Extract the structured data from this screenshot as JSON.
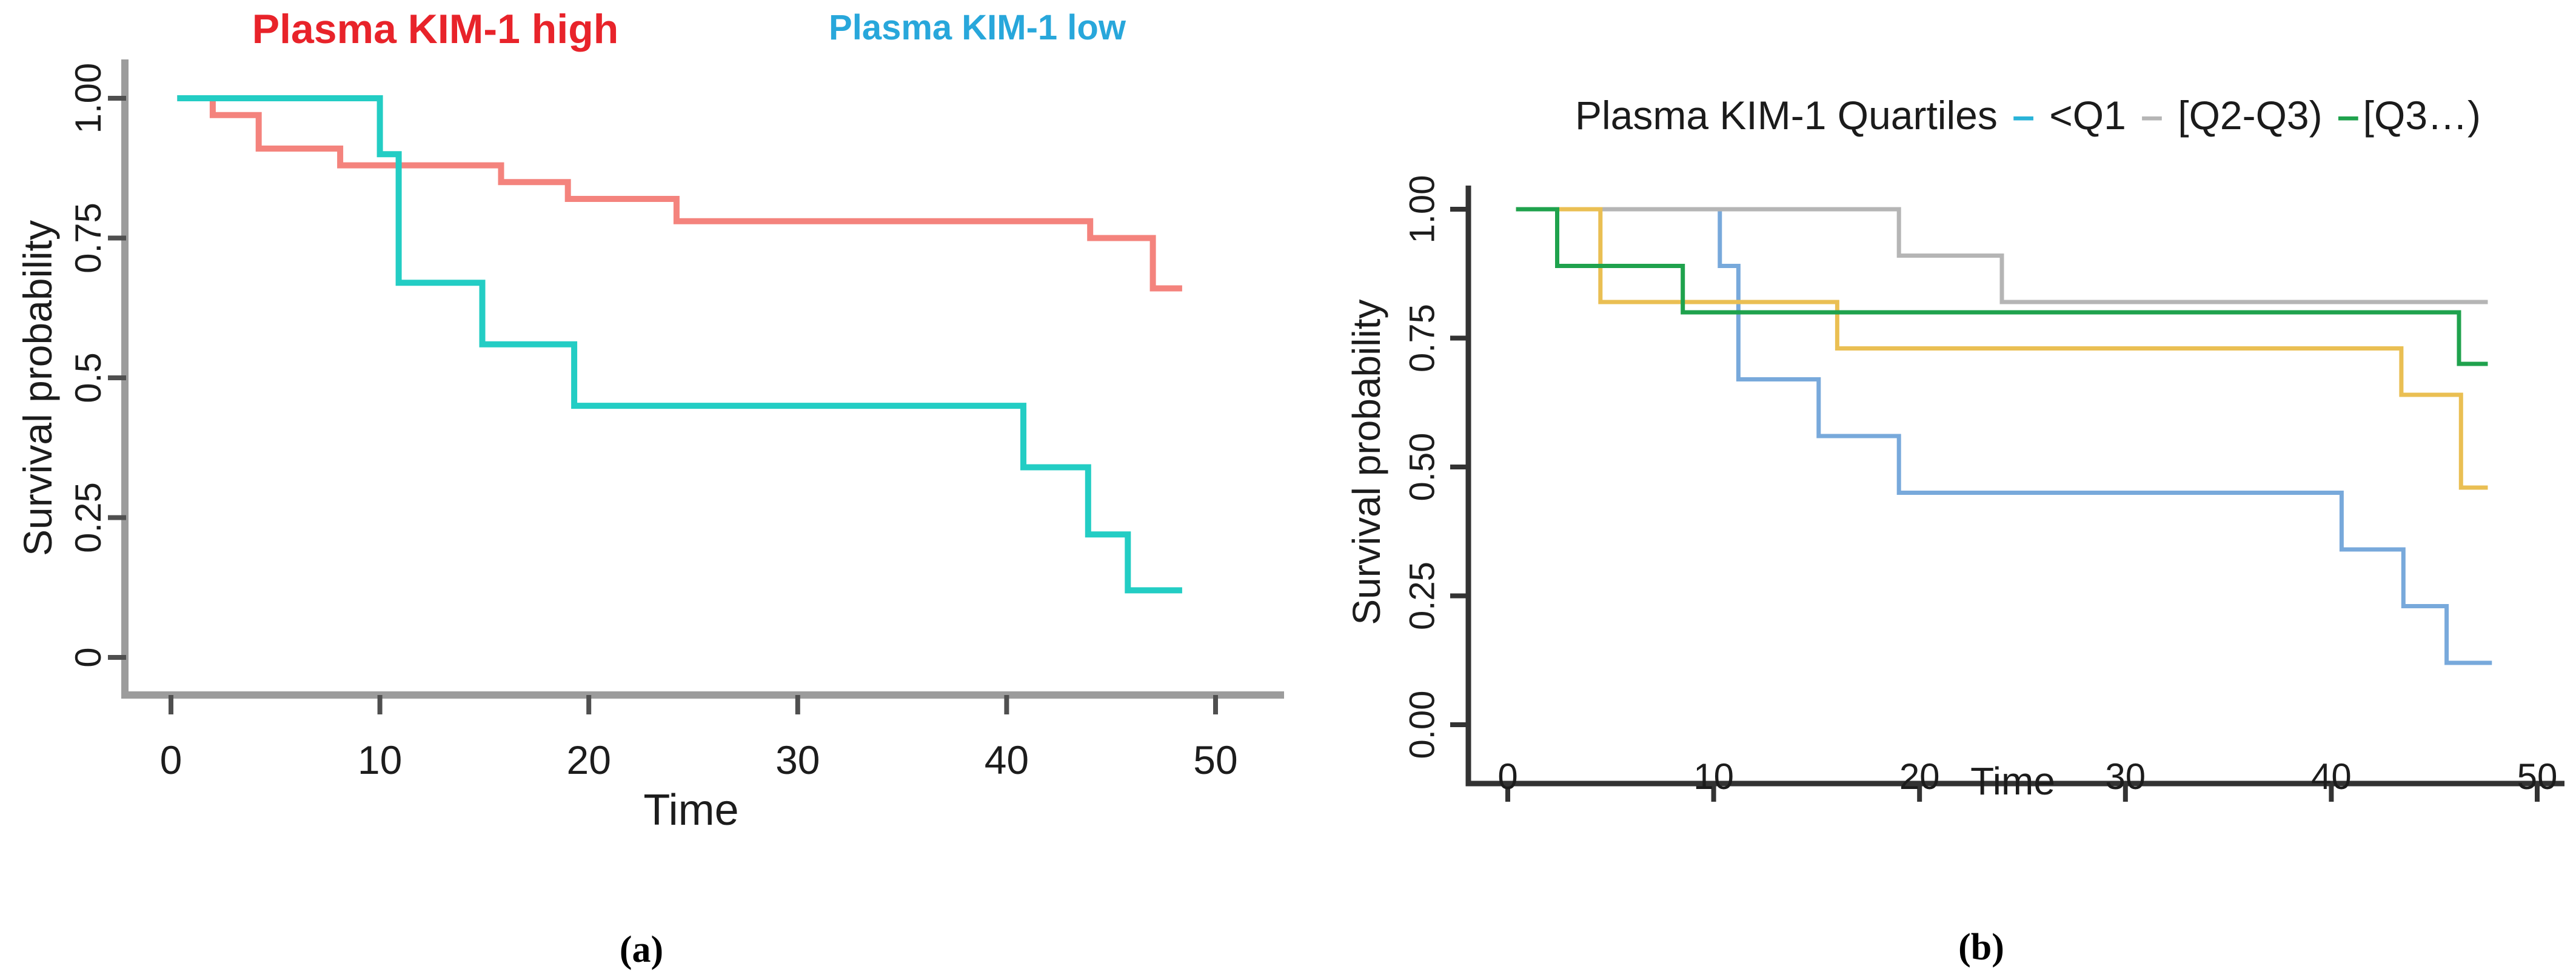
{
  "figure": {
    "background": "#ffffff",
    "caption_a": "(a)",
    "caption_b": "(b)"
  },
  "chart_data": [
    {
      "type": "line",
      "subtype": "kaplan-meier-step",
      "panel": "a",
      "caption": "(a)",
      "xlabel": "Time",
      "ylabel": "Survival probability",
      "xlim": [
        0,
        50
      ],
      "ylim": [
        0,
        1
      ],
      "grid": false,
      "legend_position": "top",
      "axis_color": "#9c9c9c",
      "tick_color": "#4f4f4f",
      "x_ticks": [
        {
          "v": 0,
          "label": "0"
        },
        {
          "v": 10,
          "label": "10"
        },
        {
          "v": 20,
          "label": "20"
        },
        {
          "v": 30,
          "label": "30"
        },
        {
          "v": 40,
          "label": "40"
        },
        {
          "v": 50,
          "label": "50"
        }
      ],
      "y_ticks": [
        {
          "v": 1.0,
          "label": "1.00"
        },
        {
          "v": 0.75,
          "label": "0.75"
        },
        {
          "v": 0.5,
          "label": "0.5"
        },
        {
          "v": 0.25,
          "label": "0.25"
        },
        {
          "v": 0.0,
          "label": "0"
        }
      ],
      "series": [
        {
          "name": "Plasma KIM-1 high",
          "color": "#f4837d",
          "legend_text_color": "#e8232a",
          "points": [
            [
              0.3,
              1.0
            ],
            [
              2.0,
              1.0
            ],
            [
              2.0,
              0.97
            ],
            [
              4.2,
              0.97
            ],
            [
              4.2,
              0.91
            ],
            [
              8.1,
              0.91
            ],
            [
              8.1,
              0.88
            ],
            [
              15.8,
              0.88
            ],
            [
              15.8,
              0.85
            ],
            [
              19.0,
              0.85
            ],
            [
              19.0,
              0.82
            ],
            [
              24.2,
              0.82
            ],
            [
              24.2,
              0.78
            ],
            [
              44.0,
              0.78
            ],
            [
              44.0,
              0.75
            ],
            [
              47.0,
              0.75
            ],
            [
              47.0,
              0.66
            ],
            [
              48.4,
              0.66
            ]
          ]
        },
        {
          "name": "Plasma KIM-1 low",
          "color": "#23cdc4",
          "legend_text_color": "#28a7db",
          "points": [
            [
              0.3,
              1.0
            ],
            [
              10.0,
              1.0
            ],
            [
              10.0,
              0.9
            ],
            [
              10.9,
              0.9
            ],
            [
              10.9,
              0.67
            ],
            [
              14.9,
              0.67
            ],
            [
              14.9,
              0.56
            ],
            [
              19.3,
              0.56
            ],
            [
              19.3,
              0.45
            ],
            [
              40.8,
              0.45
            ],
            [
              40.8,
              0.34
            ],
            [
              43.9,
              0.34
            ],
            [
              43.9,
              0.22
            ],
            [
              45.8,
              0.22
            ],
            [
              45.8,
              0.12
            ],
            [
              48.4,
              0.12
            ]
          ]
        }
      ]
    },
    {
      "type": "line",
      "subtype": "kaplan-meier-step",
      "panel": "b",
      "caption": "(b)",
      "title": "Plasma KIM-1 Quartiles – <Q1 – [Q2-Q3) –[Q3…)",
      "title_parts": [
        {
          "text": "Plasma KIM-1 Quartiles ",
          "color": "#1b1b1b",
          "dash": false
        },
        {
          "text": "–",
          "color": "#29b3d8",
          "dash": true
        },
        {
          "text": " <Q1 ",
          "color": "#1b1b1b",
          "dash": false
        },
        {
          "text": "–",
          "color": "#b5b5b5",
          "dash": true
        },
        {
          "text": " [Q2-Q3) ",
          "color": "#1b1b1b",
          "dash": false
        },
        {
          "text": "–",
          "color": "#1fa24d",
          "dash": true
        },
        {
          "text": "[Q3…)",
          "color": "#1b1b1b",
          "dash": false
        }
      ],
      "xlabel": "Time",
      "ylabel": "Survival probability",
      "xlim": [
        0,
        50
      ],
      "ylim": [
        0,
        1
      ],
      "grid": false,
      "legend_position": "title-inline",
      "axis_color": "#333333",
      "tick_color": "#333333",
      "x_ticks": [
        {
          "v": 0,
          "label": "0"
        },
        {
          "v": 10,
          "label": "10"
        },
        {
          "v": 20,
          "label": "20"
        },
        {
          "v": 30,
          "label": "30"
        },
        {
          "v": 40,
          "label": "40"
        },
        {
          "v": 50,
          "label": "50"
        }
      ],
      "y_ticks": [
        {
          "v": 1.0,
          "label": "1.00"
        },
        {
          "v": 0.75,
          "label": "0.75"
        },
        {
          "v": 0.5,
          "label": "0.50"
        },
        {
          "v": 0.25,
          "label": "0.25"
        },
        {
          "v": 0.0,
          "label": "0.00"
        }
      ],
      "series": [
        {
          "name": "<Q1",
          "color": "#78a9db",
          "legend_dash_color": "#29b3d8",
          "points": [
            [
              0.4,
              1.0
            ],
            [
              10.3,
              1.0
            ],
            [
              10.3,
              0.89
            ],
            [
              11.2,
              0.89
            ],
            [
              11.2,
              0.67
            ],
            [
              15.1,
              0.67
            ],
            [
              15.1,
              0.56
            ],
            [
              19.0,
              0.56
            ],
            [
              19.0,
              0.45
            ],
            [
              40.5,
              0.45
            ],
            [
              40.5,
              0.34
            ],
            [
              43.5,
              0.34
            ],
            [
              43.5,
              0.23
            ],
            [
              45.6,
              0.23
            ],
            [
              45.6,
              0.12
            ],
            [
              47.8,
              0.12
            ]
          ]
        },
        {
          "name": "[Q2-Q3)",
          "color": "#b5b5b5",
          "legend_dash_color": "#b5b5b5",
          "points": [
            [
              0.4,
              1.0
            ],
            [
              19.0,
              1.0
            ],
            [
              19.0,
              0.91
            ],
            [
              24.0,
              0.91
            ],
            [
              24.0,
              0.82
            ],
            [
              47.6,
              0.82
            ]
          ]
        },
        {
          "name": "",
          "color": "#eabf53",
          "legend_dash_color": "",
          "points": [
            [
              0.4,
              1.0
            ],
            [
              4.5,
              1.0
            ],
            [
              4.5,
              0.82
            ],
            [
              16.0,
              0.82
            ],
            [
              16.0,
              0.73
            ],
            [
              43.4,
              0.73
            ],
            [
              43.4,
              0.64
            ],
            [
              46.3,
              0.64
            ],
            [
              46.3,
              0.46
            ],
            [
              47.6,
              0.46
            ]
          ]
        },
        {
          "name": "[Q3…)",
          "color": "#1fa24d",
          "legend_dash_color": "#1fa24d",
          "points": [
            [
              0.4,
              1.0
            ],
            [
              2.4,
              1.0
            ],
            [
              2.4,
              0.89
            ],
            [
              8.5,
              0.89
            ],
            [
              8.5,
              0.8
            ],
            [
              46.2,
              0.8
            ],
            [
              46.2,
              0.7
            ],
            [
              47.6,
              0.7
            ]
          ]
        }
      ]
    }
  ]
}
